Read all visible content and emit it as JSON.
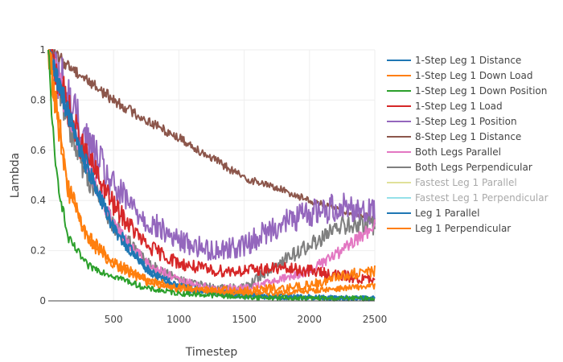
{
  "chart_data": {
    "type": "line",
    "xlabel": "Timestep",
    "ylabel": "Lambda",
    "xlim": [
      0,
      2500
    ],
    "ylim": [
      0,
      1
    ],
    "x_ticks": [
      500,
      1000,
      1500,
      2000,
      2500
    ],
    "y_ticks": [
      0,
      0.2,
      0.4,
      0.6,
      0.8,
      1
    ],
    "grid": true,
    "legend_position": "right",
    "series": [
      {
        "name": "1-Step Leg 1 Distance",
        "color": "#1f77b4",
        "x": [
          0,
          250,
          500,
          750,
          1000,
          1250,
          1500,
          1750,
          2000,
          2250,
          2500
        ],
        "y": [
          1.0,
          0.6,
          0.28,
          0.12,
          0.05,
          0.03,
          0.02,
          0.015,
          0.015,
          0.01,
          0.01
        ],
        "noise": 0.03
      },
      {
        "name": "1-Step Leg 1 Down Load",
        "color": "#ff7f0e",
        "x": [
          0,
          150,
          300,
          500,
          750,
          1000,
          1250,
          1500,
          1750,
          2000,
          2250,
          2500
        ],
        "y": [
          1.0,
          0.45,
          0.25,
          0.15,
          0.08,
          0.05,
          0.04,
          0.03,
          0.03,
          0.04,
          0.05,
          0.06
        ],
        "noise": 0.03
      },
      {
        "name": "1-Step Leg 1 Down Position",
        "color": "#2ca02c",
        "x": [
          0,
          50,
          150,
          300,
          500,
          750,
          1000,
          1500,
          2000,
          2500
        ],
        "y": [
          1.0,
          0.55,
          0.25,
          0.14,
          0.1,
          0.05,
          0.03,
          0.015,
          0.01,
          0.01
        ],
        "noise": 0.03
      },
      {
        "name": "1-Step Leg 1 Load",
        "color": "#d62728",
        "x": [
          0,
          250,
          500,
          750,
          1000,
          1250,
          1500,
          1750,
          2000,
          2250,
          2500
        ],
        "y": [
          1.0,
          0.62,
          0.38,
          0.22,
          0.15,
          0.12,
          0.12,
          0.13,
          0.12,
          0.1,
          0.08
        ],
        "noise": 0.05
      },
      {
        "name": "1-Step Leg 1 Position",
        "color": "#9467bd",
        "x": [
          0,
          250,
          500,
          750,
          1000,
          1250,
          1500,
          1750,
          2000,
          2250,
          2500
        ],
        "y": [
          1.0,
          0.68,
          0.45,
          0.32,
          0.24,
          0.2,
          0.22,
          0.3,
          0.35,
          0.38,
          0.35
        ],
        "noise": 0.07
      },
      {
        "name": "8-Step Leg 1 Distance",
        "color": "#8c564b",
        "x": [
          0,
          250,
          500,
          750,
          1000,
          1250,
          1500,
          1750,
          2000,
          2250,
          2500
        ],
        "y": [
          1.0,
          0.9,
          0.8,
          0.72,
          0.65,
          0.57,
          0.49,
          0.45,
          0.4,
          0.36,
          0.33
        ],
        "noise": 0.015
      },
      {
        "name": "Both Legs Parallel",
        "color": "#e377c2",
        "x": [
          0,
          250,
          500,
          750,
          1000,
          1250,
          1500,
          1750,
          2000,
          2250,
          2500
        ],
        "y": [
          1.0,
          0.6,
          0.3,
          0.15,
          0.08,
          0.05,
          0.05,
          0.08,
          0.12,
          0.2,
          0.3
        ],
        "noise": 0.04
      },
      {
        "name": "Both Legs Perpendicular",
        "color": "#7f7f7f",
        "x": [
          0,
          250,
          500,
          750,
          1000,
          1250,
          1500,
          1750,
          2000,
          2250,
          2500
        ],
        "y": [
          1.0,
          0.55,
          0.3,
          0.15,
          0.08,
          0.05,
          0.05,
          0.15,
          0.22,
          0.3,
          0.3
        ],
        "noise": 0.05
      },
      {
        "name": "Fastest Leg 1 Parallel",
        "color": "#bcbd22",
        "visible": "legendonly"
      },
      {
        "name": "Fastest Leg 1 Perpendicular",
        "color": "#17becf",
        "visible": "legendonly"
      },
      {
        "name": "Leg 1 Parallel",
        "color": "#1f77b4",
        "x": [
          0,
          250,
          500,
          750,
          1000,
          1250,
          1500,
          1750,
          2000,
          2250,
          2500
        ],
        "y": [
          1.0,
          0.58,
          0.3,
          0.13,
          0.06,
          0.035,
          0.025,
          0.02,
          0.015,
          0.012,
          0.01
        ],
        "noise": 0.03
      },
      {
        "name": "Leg 1 Perpendicular",
        "color": "#ff7f0e",
        "x": [
          0,
          150,
          300,
          500,
          750,
          1000,
          1250,
          1500,
          1750,
          2000,
          2250,
          2500
        ],
        "y": [
          1.0,
          0.45,
          0.25,
          0.15,
          0.08,
          0.05,
          0.04,
          0.04,
          0.05,
          0.06,
          0.1,
          0.12
        ],
        "noise": 0.05
      }
    ]
  }
}
